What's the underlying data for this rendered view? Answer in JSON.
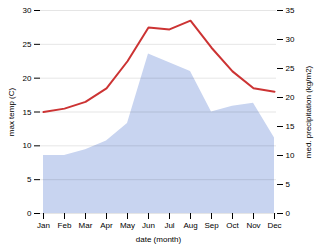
{
  "chart_data": {
    "type": "line",
    "xlabel": "date (month)",
    "ylabel": "max temp (C)",
    "y2label": "med. precipitation (kg/m2)",
    "categories": [
      "Jan",
      "Feb",
      "Mar",
      "Apr",
      "May",
      "Jun",
      "Jul",
      "Aug",
      "Sep",
      "Oct",
      "Nov",
      "Dec"
    ],
    "series": [
      {
        "type": "area",
        "axis": "y2",
        "color": "#c8d4f0",
        "values": [
          10.0,
          10.0,
          11.0,
          12.5,
          15.5,
          27.5,
          26.0,
          24.5,
          17.5,
          18.5,
          19.0,
          13.0
        ]
      },
      {
        "type": "line",
        "color": "#cc3333",
        "values": [
          15.0,
          15.5,
          16.5,
          18.5,
          22.5,
          27.5,
          27.2,
          28.5,
          24.5,
          21.0,
          18.5,
          18.0
        ]
      }
    ],
    "ylim": [
      0,
      30
    ],
    "yticks": [
      0,
      5,
      10,
      15,
      20,
      25,
      30
    ],
    "y2lim": [
      0,
      35
    ],
    "y2ticks": [
      0,
      5,
      10,
      15,
      20,
      25,
      30,
      35
    ],
    "grid": true
  }
}
